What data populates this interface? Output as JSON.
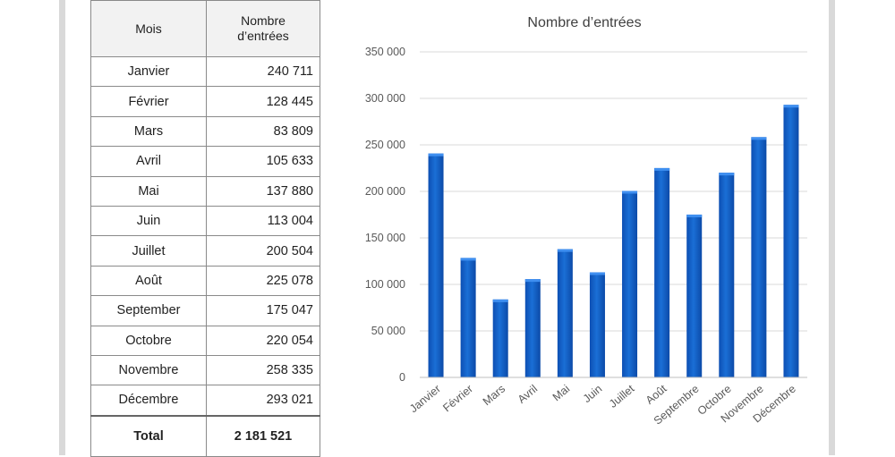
{
  "table": {
    "header_month": "Mois",
    "header_count_line1": "Nombre",
    "header_count_line2": "d’entrées",
    "rows": [
      {
        "month": "Janvier",
        "value": "240 711"
      },
      {
        "month": "Février",
        "value": "128 445"
      },
      {
        "month": "Mars",
        "value": "83 809"
      },
      {
        "month": "Avril",
        "value": "105 633"
      },
      {
        "month": "Mai",
        "value": "137 880"
      },
      {
        "month": "Juin",
        "value": "113 004"
      },
      {
        "month": "Juillet",
        "value": "200 504"
      },
      {
        "month": "Août",
        "value": "225 078"
      },
      {
        "month": "September",
        "value": "175 047"
      },
      {
        "month": "Octobre",
        "value": "220 054"
      },
      {
        "month": "Novembre",
        "value": "258 335"
      },
      {
        "month": "Décembre",
        "value": "293 021"
      }
    ],
    "total_label": "Total",
    "total_value": "2 181 521"
  },
  "chart_data": {
    "type": "bar",
    "title": "Nombre d’entrées",
    "categories": [
      "Janvier",
      "Février",
      "Mars",
      "Avril",
      "Mai",
      "Juin",
      "Juillet",
      "Août",
      "Septembre",
      "Octobre",
      "Novembre",
      "Décembre"
    ],
    "values": [
      240711,
      128445,
      83809,
      105633,
      137880,
      113004,
      200504,
      225078,
      175047,
      220054,
      258335,
      293021
    ],
    "ylim": [
      0,
      350000
    ],
    "yticks": [
      "0",
      "50 000",
      "100 000",
      "150 000",
      "200 000",
      "250 000",
      "300 000",
      "350 000"
    ],
    "grid": true,
    "bar_color": "#1a6fd6"
  }
}
